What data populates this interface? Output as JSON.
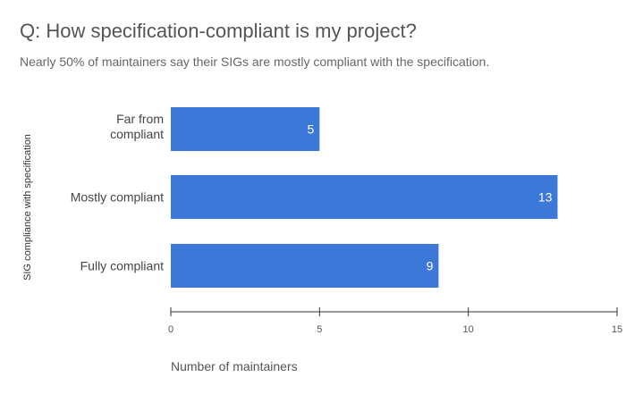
{
  "chart_data": {
    "type": "bar",
    "orientation": "horizontal",
    "title": "Q: How specification-compliant is my project?",
    "subtitle": "Nearly 50% of maintainers say their SIGs are mostly compliant with the specification.",
    "categories": [
      "Far from compliant",
      "Mostly compliant",
      "Fully compliant"
    ],
    "values": [
      5,
      13,
      9
    ],
    "data_labels": [
      "5",
      "13",
      "9"
    ],
    "xlabel": "Number of maintainers",
    "ylabel": "SIG compliance with specification",
    "xlim": [
      0,
      15
    ],
    "x_ticks": [
      "0",
      "5",
      "10",
      "15"
    ],
    "grid": false,
    "legend": "none",
    "bar_color": "#3c78d8"
  }
}
